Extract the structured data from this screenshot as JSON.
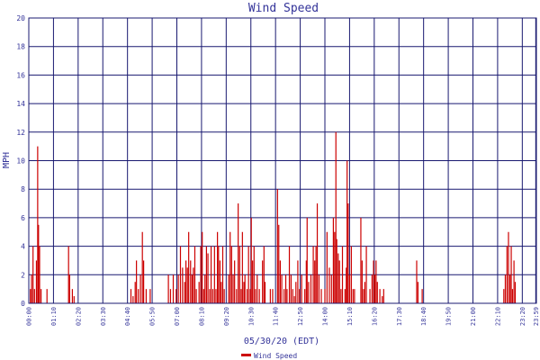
{
  "colors": {
    "background": "#ffffff",
    "grid": "#191970",
    "axis_text": "#333399",
    "series": "#cc0000"
  },
  "chart_data": {
    "type": "bar",
    "title": "Wind Speed",
    "xlabel": "05/30/20 (EDT)",
    "ylabel": "MPH",
    "ylim": [
      0,
      20
    ],
    "xlim_hours": [
      0,
      24
    ],
    "grid": true,
    "legend_position": "bottom",
    "yticks": [
      0,
      2,
      4,
      6,
      8,
      10,
      12,
      14,
      16,
      18,
      20
    ],
    "xticks": [
      {
        "hour": 0.0,
        "label": "00:00"
      },
      {
        "hour": 1.1667,
        "label": "01:10"
      },
      {
        "hour": 2.3333,
        "label": "02:20"
      },
      {
        "hour": 3.5,
        "label": "03:30"
      },
      {
        "hour": 4.6667,
        "label": "04:40"
      },
      {
        "hour": 5.8333,
        "label": "05:50"
      },
      {
        "hour": 7.0,
        "label": "07:00"
      },
      {
        "hour": 8.1667,
        "label": "08:10"
      },
      {
        "hour": 9.3333,
        "label": "09:20"
      },
      {
        "hour": 10.5,
        "label": "10:30"
      },
      {
        "hour": 11.6667,
        "label": "11:40"
      },
      {
        "hour": 12.8333,
        "label": "12:50"
      },
      {
        "hour": 14.0,
        "label": "14:00"
      },
      {
        "hour": 15.1667,
        "label": "15:10"
      },
      {
        "hour": 16.3333,
        "label": "16:20"
      },
      {
        "hour": 17.5,
        "label": "17:30"
      },
      {
        "hour": 18.6667,
        "label": "18:40"
      },
      {
        "hour": 19.8333,
        "label": "19:50"
      },
      {
        "hour": 21.0,
        "label": "21:00"
      },
      {
        "hour": 22.1667,
        "label": "22:10"
      },
      {
        "hour": 23.3333,
        "label": "23:20"
      },
      {
        "hour": 23.97,
        "label": "23:59"
      }
    ],
    "series": [
      {
        "name": "Wind Speed",
        "points": [
          [
            0.0,
            0
          ],
          [
            0.08,
            1
          ],
          [
            0.13,
            2
          ],
          [
            0.2,
            4
          ],
          [
            0.27,
            1
          ],
          [
            0.36,
            3
          ],
          [
            0.42,
            11
          ],
          [
            0.46,
            5.5
          ],
          [
            0.51,
            4
          ],
          [
            0.58,
            1
          ],
          [
            0.86,
            1
          ],
          [
            1.88,
            4
          ],
          [
            1.93,
            2
          ],
          [
            2.06,
            1
          ],
          [
            2.14,
            0.5
          ],
          [
            4.83,
            1
          ],
          [
            4.93,
            0.5
          ],
          [
            5.03,
            1.5
          ],
          [
            5.09,
            3
          ],
          [
            5.18,
            1
          ],
          [
            5.28,
            2
          ],
          [
            5.37,
            5
          ],
          [
            5.43,
            3
          ],
          [
            5.55,
            1
          ],
          [
            5.74,
            1
          ],
          [
            6.6,
            2
          ],
          [
            6.7,
            1
          ],
          [
            6.83,
            2
          ],
          [
            6.97,
            1
          ],
          [
            7.07,
            2
          ],
          [
            7.17,
            4
          ],
          [
            7.27,
            2.5
          ],
          [
            7.37,
            1.5
          ],
          [
            7.43,
            3
          ],
          [
            7.5,
            2.5
          ],
          [
            7.56,
            5
          ],
          [
            7.65,
            3
          ],
          [
            7.72,
            2
          ],
          [
            7.78,
            2.5
          ],
          [
            7.85,
            4
          ],
          [
            7.92,
            1
          ],
          [
            8.05,
            1.5
          ],
          [
            8.13,
            4
          ],
          [
            8.2,
            5
          ],
          [
            8.27,
            1
          ],
          [
            8.33,
            2
          ],
          [
            8.4,
            4
          ],
          [
            8.47,
            3.5
          ],
          [
            8.55,
            1
          ],
          [
            8.62,
            4
          ],
          [
            8.7,
            1
          ],
          [
            8.78,
            4
          ],
          [
            8.85,
            1
          ],
          [
            8.92,
            5
          ],
          [
            8.97,
            4
          ],
          [
            9.04,
            3
          ],
          [
            9.1,
            1.5
          ],
          [
            9.17,
            4
          ],
          [
            9.24,
            1
          ],
          [
            9.45,
            2
          ],
          [
            9.52,
            5
          ],
          [
            9.59,
            4
          ],
          [
            9.66,
            2
          ],
          [
            9.73,
            3
          ],
          [
            9.82,
            1
          ],
          [
            9.9,
            7
          ],
          [
            9.97,
            4
          ],
          [
            10.04,
            1
          ],
          [
            10.1,
            5
          ],
          [
            10.17,
            1.5
          ],
          [
            10.22,
            2
          ],
          [
            10.32,
            1
          ],
          [
            10.39,
            4
          ],
          [
            10.47,
            1
          ],
          [
            10.52,
            6
          ],
          [
            10.58,
            3
          ],
          [
            10.65,
            4
          ],
          [
            10.72,
            1
          ],
          [
            10.8,
            2
          ],
          [
            10.9,
            1
          ],
          [
            11.05,
            3
          ],
          [
            11.12,
            4
          ],
          [
            11.17,
            1.5
          ],
          [
            11.42,
            1
          ],
          [
            11.53,
            1
          ],
          [
            11.76,
            8
          ],
          [
            11.82,
            5.5
          ],
          [
            11.89,
            3
          ],
          [
            11.96,
            2
          ],
          [
            12.07,
            1
          ],
          [
            12.15,
            2
          ],
          [
            12.21,
            1
          ],
          [
            12.32,
            4
          ],
          [
            12.4,
            2
          ],
          [
            12.48,
            1
          ],
          [
            12.56,
            0.5
          ],
          [
            12.63,
            1.5
          ],
          [
            12.72,
            3
          ],
          [
            12.8,
            1
          ],
          [
            12.9,
            2
          ],
          [
            13.05,
            1
          ],
          [
            13.12,
            3
          ],
          [
            13.16,
            6
          ],
          [
            13.23,
            1.5
          ],
          [
            13.34,
            2
          ],
          [
            13.45,
            4
          ],
          [
            13.52,
            3
          ],
          [
            13.58,
            4
          ],
          [
            13.64,
            7
          ],
          [
            13.72,
            2
          ],
          [
            13.83,
            1
          ],
          [
            14.0,
            1
          ],
          [
            14.1,
            5
          ],
          [
            14.21,
            2.5
          ],
          [
            14.31,
            2
          ],
          [
            14.4,
            6
          ],
          [
            14.46,
            5
          ],
          [
            14.52,
            12
          ],
          [
            14.56,
            4.5
          ],
          [
            14.63,
            3.5
          ],
          [
            14.69,
            3
          ],
          [
            14.76,
            1
          ],
          [
            14.83,
            4
          ],
          [
            14.95,
            1
          ],
          [
            15.01,
            2.5
          ],
          [
            15.05,
            10
          ],
          [
            15.1,
            7
          ],
          [
            15.17,
            2
          ],
          [
            15.25,
            4
          ],
          [
            15.33,
            1
          ],
          [
            15.4,
            1
          ],
          [
            15.7,
            6
          ],
          [
            15.76,
            3
          ],
          [
            15.83,
            1
          ],
          [
            15.89,
            1.5
          ],
          [
            15.96,
            4
          ],
          [
            16.13,
            1
          ],
          [
            16.23,
            2
          ],
          [
            16.3,
            3
          ],
          [
            16.36,
            2
          ],
          [
            16.42,
            3
          ],
          [
            16.48,
            1.5
          ],
          [
            16.6,
            1
          ],
          [
            16.71,
            0.5
          ],
          [
            16.78,
            1
          ],
          [
            18.34,
            3
          ],
          [
            18.4,
            1.5
          ],
          [
            18.6,
            1
          ],
          [
            22.46,
            1
          ],
          [
            22.53,
            2
          ],
          [
            22.61,
            4
          ],
          [
            22.68,
            5
          ],
          [
            22.75,
            2
          ],
          [
            22.81,
            4
          ],
          [
            22.87,
            1
          ],
          [
            22.94,
            3
          ],
          [
            23.0,
            1.5
          ]
        ]
      }
    ]
  }
}
